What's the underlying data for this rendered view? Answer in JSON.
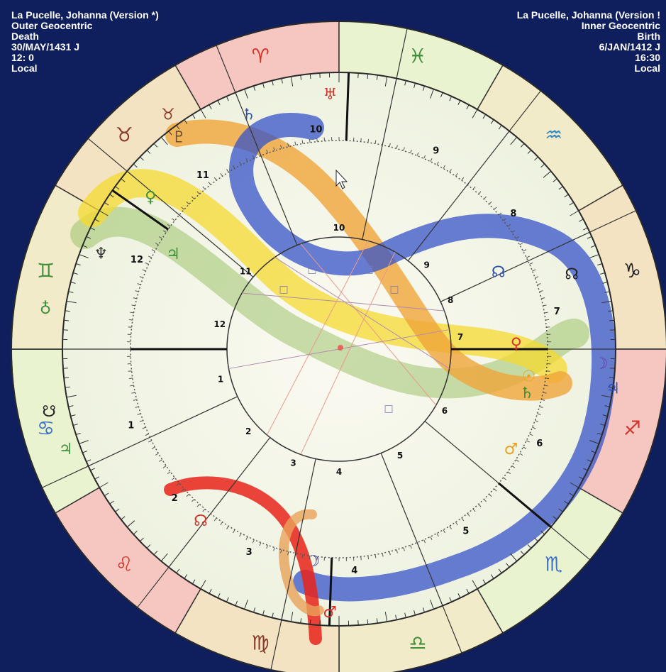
{
  "header_left": {
    "name": "La Pucelle, Johanna (Version *)",
    "wheel": "Outer Geocentric",
    "event": "Death",
    "date": "30/MAY/1431 J",
    "time": "12: 0",
    "zone": "Local"
  },
  "header_right": {
    "name": "La Pucelle, Johanna (Version !",
    "wheel": "Inner Geocentric",
    "event": "Birth",
    "date": "6/JAN/1412 J",
    "time": "16:30",
    "zone": "Local"
  },
  "colors": {
    "background": "#0f1e5c",
    "fire": "#f6c7c0",
    "earth": "#f3e3c2",
    "air": "#e9f3d0",
    "water": "#f2ebc9",
    "band_yellow": "#f5d930",
    "band_orange": "#f0a53a",
    "band_blue": "#3553c8",
    "band_green": "#7fb34a",
    "band_red": "#e8231a"
  },
  "zodiac_glyphs": [
    {
      "symbol": "♈",
      "name": "aries",
      "color": "#d0342c"
    },
    {
      "symbol": "♓",
      "name": "pisces",
      "color": "#3f8f3a"
    },
    {
      "symbol": "♒",
      "name": "aquarius",
      "color": "#2a86c8"
    },
    {
      "symbol": "♑",
      "name": "capricorn",
      "color": "#222222"
    },
    {
      "symbol": "♐",
      "name": "sagittarius",
      "color": "#d0342c"
    },
    {
      "symbol": "♏",
      "name": "scorpio",
      "color": "#3a6fc8"
    },
    {
      "symbol": "♎",
      "name": "libra",
      "color": "#3f8f3a"
    },
    {
      "symbol": "♍",
      "name": "virgo",
      "color": "#8a3a2a"
    },
    {
      "symbol": "♌",
      "name": "leo",
      "color": "#d0342c"
    },
    {
      "symbol": "♋",
      "name": "cancer",
      "color": "#3a6fc8"
    },
    {
      "symbol": "♊",
      "name": "gemini",
      "color": "#3f8f3a"
    },
    {
      "symbol": "♉",
      "name": "taurus",
      "color": "#8a3a2a"
    }
  ],
  "outer_house_numbers": [
    "1",
    "2",
    "3",
    "4",
    "5",
    "6",
    "7",
    "8",
    "9",
    "10",
    "11",
    "12"
  ],
  "inner_house_numbers": [
    "1",
    "2",
    "3",
    "4",
    "5",
    "6",
    "7",
    "8",
    "9",
    "10",
    "11",
    "12"
  ],
  "planets": [
    {
      "symbol": "♅",
      "name": "uranus",
      "color": "#d0342c"
    },
    {
      "symbol": "♄",
      "name": "saturn",
      "color": "#2a4fb0"
    },
    {
      "symbol": "♇",
      "name": "pluto",
      "color": "#6a4a2a"
    },
    {
      "symbol": "♀",
      "name": "venus-outer",
      "color": "#3f8f3a"
    },
    {
      "symbol": "♃",
      "name": "jupiter-outer",
      "color": "#3f8f3a"
    },
    {
      "symbol": "♆",
      "name": "neptune",
      "color": "#333333"
    },
    {
      "symbol": "☊",
      "name": "node-inner",
      "color": "#2a4fb0"
    },
    {
      "symbol": "☊",
      "name": "node-outer",
      "color": "#222222"
    },
    {
      "symbol": "♀",
      "name": "venus-inner",
      "color": "#d0342c"
    },
    {
      "symbol": "☽",
      "name": "moon-inner",
      "color": "#6a3aa0"
    },
    {
      "symbol": "♃",
      "name": "jupiter-inner",
      "color": "#2a4fb0"
    },
    {
      "symbol": "☉",
      "name": "sun-inner",
      "color": "#e8a020"
    },
    {
      "symbol": "♄",
      "name": "saturn-inner",
      "color": "#3f8f3a"
    },
    {
      "symbol": "♂",
      "name": "mars-inner",
      "color": "#e8a020"
    },
    {
      "symbol": "☊",
      "name": "node-lower",
      "color": "#d0342c"
    },
    {
      "symbol": "☽",
      "name": "moon-outer",
      "color": "#3a3a9a"
    },
    {
      "symbol": "♂",
      "name": "mars-outer",
      "color": "#d0342c"
    },
    {
      "symbol": "♃",
      "name": "jupiter-lower",
      "color": "#3f8f3a"
    },
    {
      "symbol": "☋",
      "name": "southnode-left",
      "color": "#222222"
    },
    {
      "symbol": "♁",
      "name": "earth-left",
      "color": "#3f8f3a"
    },
    {
      "symbol": "♉",
      "name": "taurus-tag",
      "color": "#8a3a2a"
    }
  ],
  "aspect_symbol": "□"
}
